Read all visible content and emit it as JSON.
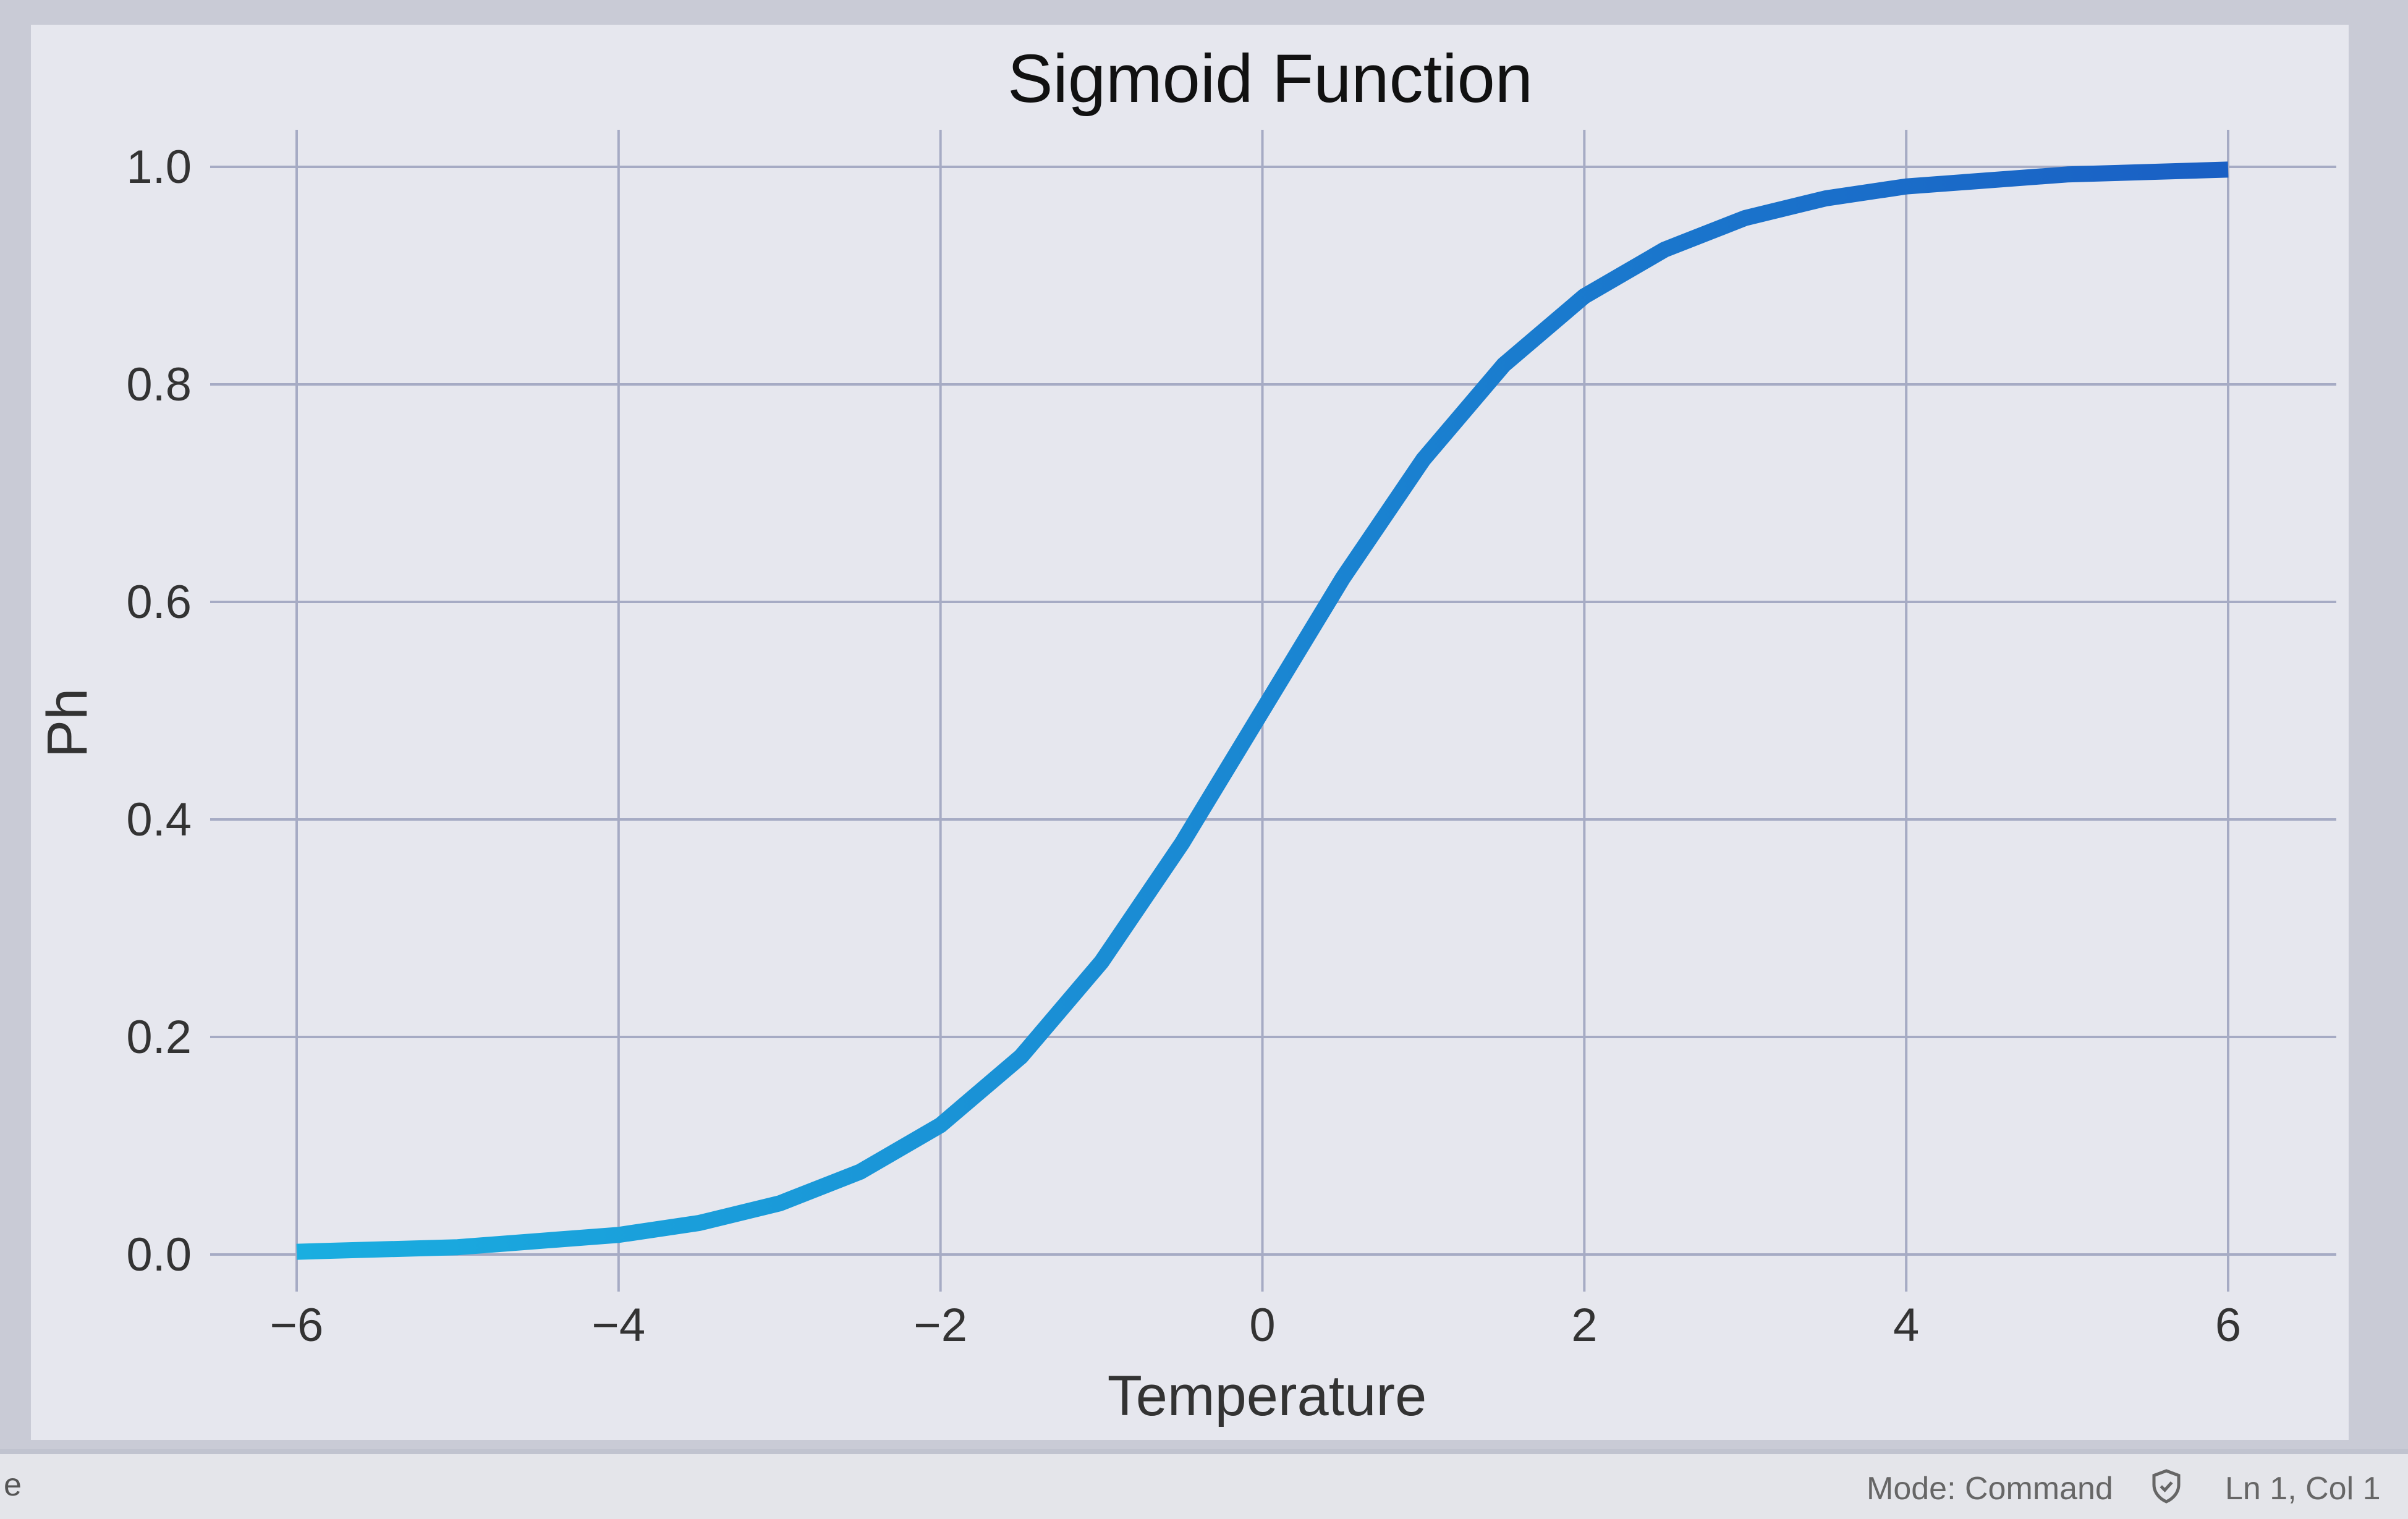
{
  "chart_data": {
    "type": "line",
    "title": "Sigmoid Function",
    "xlabel": "Temperature",
    "ylabel": "Ph",
    "xlim": [
      -6,
      6
    ],
    "ylim": [
      0,
      1
    ],
    "xticks": [
      -6,
      -4,
      -2,
      0,
      2,
      4,
      6
    ],
    "xtick_labels": [
      "−6",
      "−4",
      "−2",
      "0",
      "2",
      "4",
      "6"
    ],
    "yticks": [
      0,
      0.2,
      0.4,
      0.6,
      0.8,
      1.0
    ],
    "ytick_labels": [
      "0.0",
      "0.2",
      "0.4",
      "0.6",
      "0.8",
      "1.0"
    ],
    "grid": true,
    "line_color_start": "#1aaee0",
    "line_color_end": "#1a5fc4",
    "series": [
      {
        "x": [
          -6,
          -5,
          -4,
          -3.5,
          -3,
          -2.5,
          -2,
          -1.5,
          -1,
          -0.5,
          0,
          0.5,
          1,
          1.5,
          2,
          2.5,
          3,
          3.5,
          4,
          5,
          6
        ],
        "y": [
          0.0025,
          0.0067,
          0.018,
          0.029,
          0.047,
          0.076,
          0.119,
          0.182,
          0.269,
          0.378,
          0.5,
          0.622,
          0.731,
          0.818,
          0.881,
          0.924,
          0.953,
          0.971,
          0.982,
          0.993,
          0.9975
        ]
      }
    ]
  },
  "status_bar": {
    "left_text": "e",
    "mode": "Mode: Command",
    "position": "Ln 1, Col 1"
  }
}
